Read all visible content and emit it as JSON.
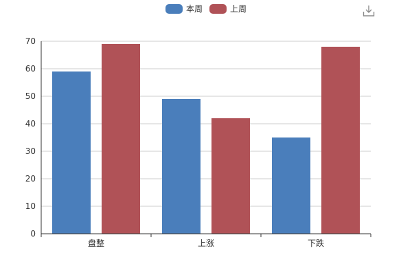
{
  "legend": {
    "items": [
      {
        "label": "本周",
        "color": "#4a7ebb"
      },
      {
        "label": "上周",
        "color": "#b05257"
      }
    ]
  },
  "toolbox": {
    "icon": "download-icon",
    "color": "#8c8c8c"
  },
  "chart_data": {
    "type": "bar",
    "categories": [
      "盘整",
      "上涨",
      "下跌"
    ],
    "series": [
      {
        "name": "本周",
        "values": [
          59,
          49,
          35
        ],
        "color": "#4a7ebb"
      },
      {
        "name": "上周",
        "values": [
          69,
          42,
          68
        ],
        "color": "#b05257"
      }
    ],
    "title": "",
    "xlabel": "",
    "ylabel": "",
    "ylim": [
      0,
      70
    ],
    "yticks": [
      0,
      10,
      20,
      30,
      40,
      50,
      60,
      70
    ],
    "grid": true,
    "legend_position": "top-center"
  }
}
